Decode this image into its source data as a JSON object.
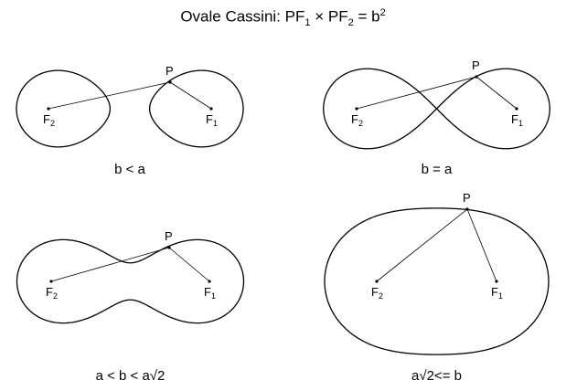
{
  "title": {
    "prefix": "Ovale Cassini: PF",
    "sub1": "1",
    "mid": " × PF",
    "sub2": "2",
    "eq": " = b",
    "sup": "2"
  },
  "labels": {
    "point": "P",
    "f1": "F",
    "f1_sub": "1",
    "f2": "F",
    "f2_sub": "2"
  },
  "chart_data": [
    {
      "type": "diagram",
      "caption": "b < a",
      "b_over_a": 0.97
    },
    {
      "type": "diagram",
      "caption": "b = a",
      "b_over_a": 1.0
    },
    {
      "type": "diagram",
      "caption": "a < b < a√2",
      "b_over_a": 1.027
    },
    {
      "type": "diagram",
      "caption": "a√2<= b",
      "b_over_a": 1.58
    }
  ]
}
